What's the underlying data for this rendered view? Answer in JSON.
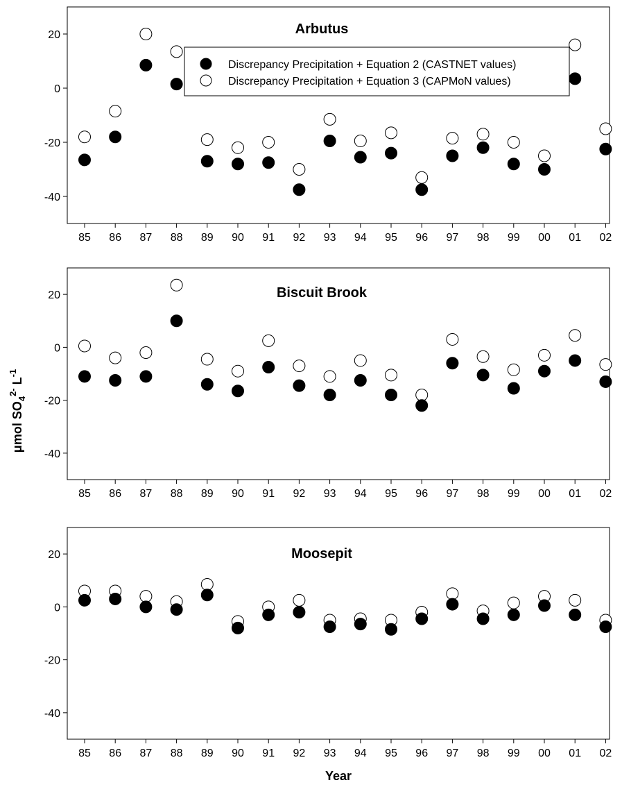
{
  "chart_data": [
    {
      "type": "scatter",
      "title": "Arbutus",
      "xlabel": "",
      "ylabel": "",
      "categories": [
        "85",
        "86",
        "87",
        "88",
        "89",
        "90",
        "91",
        "92",
        "93",
        "94",
        "95",
        "96",
        "97",
        "98",
        "99",
        "00",
        "01",
        "02"
      ],
      "yticks": [
        "20",
        "0",
        "-20",
        "-40"
      ],
      "ylim": [
        -50,
        30
      ],
      "grid": false,
      "legend": "top-right",
      "series": [
        {
          "name": "Discrepancy Precipitation + Equation 2 (CASTNET values)",
          "marker": "filled",
          "values": [
            -26.5,
            -18,
            8.5,
            1.5,
            -27,
            -28,
            -27.5,
            -37.5,
            -19.5,
            -25.5,
            -24,
            -37.5,
            -25,
            -22,
            -28,
            -30,
            3.5,
            -22.5
          ]
        },
        {
          "name": "Discrepancy Precipitation + Equation 3 (CAPMoN values)",
          "marker": "open",
          "values": [
            -18,
            -8.5,
            20,
            13.5,
            -19,
            -22,
            -20,
            -30,
            -11.5,
            -19.5,
            -16.5,
            -33,
            -18.5,
            -17,
            -20,
            -25,
            16,
            -15
          ]
        }
      ]
    },
    {
      "type": "scatter",
      "title": "Biscuit Brook",
      "xlabel": "",
      "ylabel": "μmol SO4 2- L-1",
      "categories": [
        "85",
        "86",
        "87",
        "88",
        "89",
        "90",
        "91",
        "92",
        "93",
        "94",
        "95",
        "96",
        "97",
        "98",
        "99",
        "00",
        "01",
        "02"
      ],
      "yticks": [
        "20",
        "0",
        "-20",
        "-40"
      ],
      "ylim": [
        -50,
        30
      ],
      "grid": false,
      "series": [
        {
          "name": "Discrepancy Precipitation + Equation 2 (CASTNET values)",
          "marker": "filled",
          "values": [
            -11,
            -12.5,
            -11,
            10,
            -14,
            -16.5,
            -7.5,
            -14.5,
            -18,
            -12.5,
            -18,
            -22,
            -6,
            -10.5,
            -15.5,
            -9,
            -5,
            -13
          ]
        },
        {
          "name": "Discrepancy Precipitation + Equation 3 (CAPMoN values)",
          "marker": "open",
          "values": [
            0.5,
            -4,
            -2,
            23.5,
            -4.5,
            -9,
            2.5,
            -7,
            -11,
            -5,
            -10.5,
            -18,
            3,
            -3.5,
            -8.5,
            -3,
            4.5,
            -6.5
          ]
        }
      ]
    },
    {
      "type": "scatter",
      "title": "Moosepit",
      "xlabel": "Year",
      "ylabel": "",
      "categories": [
        "85",
        "86",
        "87",
        "88",
        "89",
        "90",
        "91",
        "92",
        "93",
        "94",
        "95",
        "96",
        "97",
        "98",
        "99",
        "00",
        "01",
        "02"
      ],
      "yticks": [
        "20",
        "0",
        "-20",
        "-40"
      ],
      "ylim": [
        -50,
        30
      ],
      "grid": false,
      "series": [
        {
          "name": "Discrepancy Precipitation + Equation 2 (CASTNET values)",
          "marker": "filled",
          "values": [
            2.5,
            3,
            0,
            -1,
            4.5,
            -8,
            -3,
            -2,
            -7.5,
            -6.5,
            -8.5,
            -4.5,
            1,
            -4.5,
            -3,
            0.5,
            -3,
            -7.5
          ]
        },
        {
          "name": "Discrepancy Precipitation + Equation 3 (CAPMoN values)",
          "marker": "open",
          "values": [
            6,
            6,
            4,
            2,
            8.5,
            -5.5,
            0,
            2.5,
            -5,
            -4.5,
            -5,
            -2,
            5,
            -1.5,
            1.5,
            4,
            2.5,
            -5
          ]
        }
      ]
    }
  ],
  "ylabel_parts": {
    "main": "μmol SO",
    "sub": "4",
    "sup": "2-",
    "unit": " L",
    "unit_sup": "-1"
  }
}
